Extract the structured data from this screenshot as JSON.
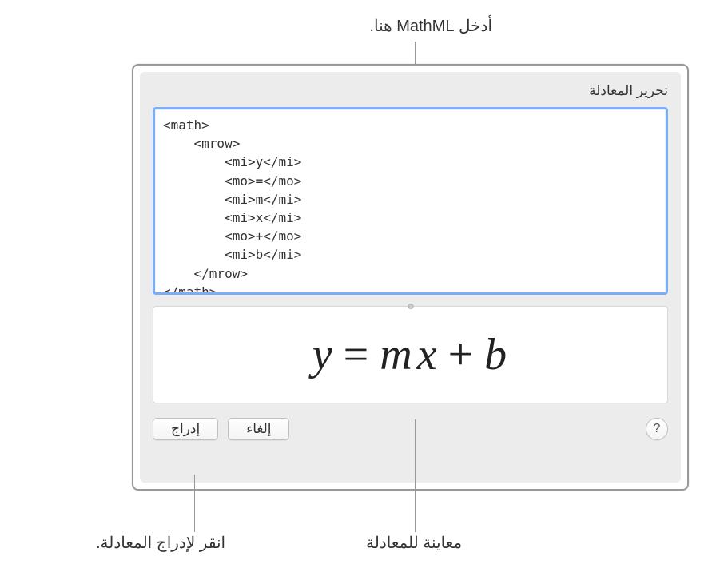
{
  "callouts": {
    "top": "أدخل MathML هنا.",
    "bottom_left": "انقر لإدراج المعادلة.",
    "bottom_mid": "معاينة للمعادلة"
  },
  "dialog": {
    "title": "تحرير المعادلة",
    "code": "<math>\n    <mrow>\n        <mi>y</mi>\n        <mo>=</mo>\n        <mi>m</mi>\n        <mi>x</mi>\n        <mo>+</mo>\n        <mi>b</mi>\n    </mrow>\n</math>",
    "preview": {
      "y": "y",
      "eq": "=",
      "m": "m",
      "x": "x",
      "plus": "+",
      "b": "b"
    },
    "buttons": {
      "insert": "إدراج",
      "cancel": "إلغاء",
      "help": "?"
    }
  }
}
